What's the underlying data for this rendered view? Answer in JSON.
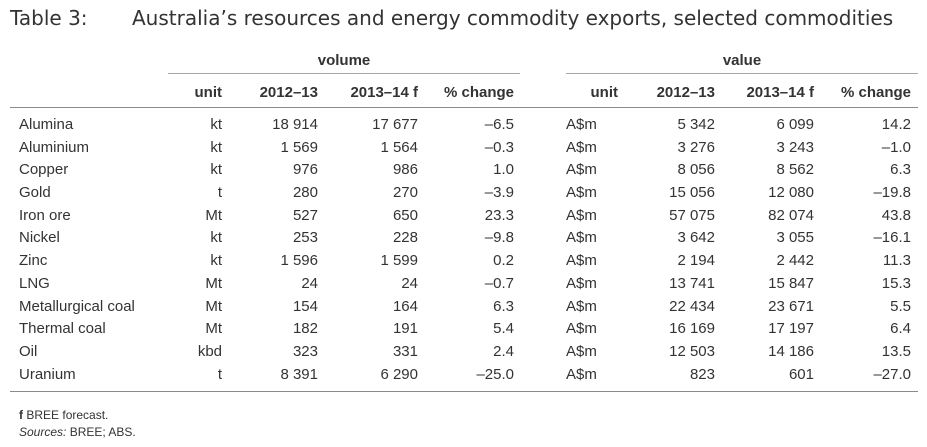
{
  "table": {
    "label": "Table 3:",
    "title": "Australia’s resources and energy commodity exports, selected commodities",
    "group_volume": "volume",
    "group_value": "value",
    "columns": {
      "unit": "unit",
      "y1": "2012–13",
      "y2": "2013–14 f",
      "pct": "% change"
    },
    "rows": [
      {
        "name": "Alumina",
        "vunit": "kt",
        "v1": "18 914",
        "v2": "17 677",
        "vp": "–6.5",
        "cunit": "A$m",
        "c1": "5 342",
        "c2": "6 099",
        "cp": "14.2"
      },
      {
        "name": "Aluminium",
        "vunit": "kt",
        "v1": "1 569",
        "v2": "1 564",
        "vp": "–0.3",
        "cunit": "A$m",
        "c1": "3 276",
        "c2": "3 243",
        "cp": "–1.0"
      },
      {
        "name": "Copper",
        "vunit": "kt",
        "v1": "976",
        "v2": "986",
        "vp": "1.0",
        "cunit": "A$m",
        "c1": "8 056",
        "c2": "8 562",
        "cp": "6.3"
      },
      {
        "name": "Gold",
        "vunit": "t",
        "v1": "280",
        "v2": "270",
        "vp": "–3.9",
        "cunit": "A$m",
        "c1": "15 056",
        "c2": "12 080",
        "cp": "–19.8"
      },
      {
        "name": "Iron ore",
        "vunit": "Mt",
        "v1": "527",
        "v2": "650",
        "vp": "23.3",
        "cunit": "A$m",
        "c1": "57 075",
        "c2": "82 074",
        "cp": "43.8"
      },
      {
        "name": "Nickel",
        "vunit": "kt",
        "v1": "253",
        "v2": "228",
        "vp": "–9.8",
        "cunit": "A$m",
        "c1": "3 642",
        "c2": "3 055",
        "cp": "–16.1"
      },
      {
        "name": "Zinc",
        "vunit": "kt",
        "v1": "1 596",
        "v2": "1 599",
        "vp": "0.2",
        "cunit": "A$m",
        "c1": "2 194",
        "c2": "2 442",
        "cp": "11.3"
      },
      {
        "name": "LNG",
        "vunit": "Mt",
        "v1": "24",
        "v2": "24",
        "vp": "–0.7",
        "cunit": "A$m",
        "c1": "13 741",
        "c2": "15 847",
        "cp": "15.3"
      },
      {
        "name": "Metallurgical coal",
        "vunit": "Mt",
        "v1": "154",
        "v2": "164",
        "vp": "6.3",
        "cunit": "A$m",
        "c1": "22 434",
        "c2": "23 671",
        "cp": "5.5"
      },
      {
        "name": "Thermal coal",
        "vunit": "Mt",
        "v1": "182",
        "v2": "191",
        "vp": "5.4",
        "cunit": "A$m",
        "c1": "16 169",
        "c2": "17 197",
        "cp": "6.4"
      },
      {
        "name": "Oil",
        "vunit": "kbd",
        "v1": "323",
        "v2": "331",
        "vp": "2.4",
        "cunit": "A$m",
        "c1": "12 503",
        "c2": "14 186",
        "cp": "13.5"
      },
      {
        "name": "Uranium",
        "vunit": "t",
        "v1": "8 391",
        "v2": "6 290",
        "vp": "–25.0",
        "cunit": "A$m",
        "c1": "823",
        "c2": "601",
        "cp": "–27.0"
      }
    ]
  },
  "notes": {
    "forecast_marker": "f",
    "forecast_text": "BREE forecast.",
    "sources_label": "Sources:",
    "sources_text": "BREE; ABS."
  }
}
